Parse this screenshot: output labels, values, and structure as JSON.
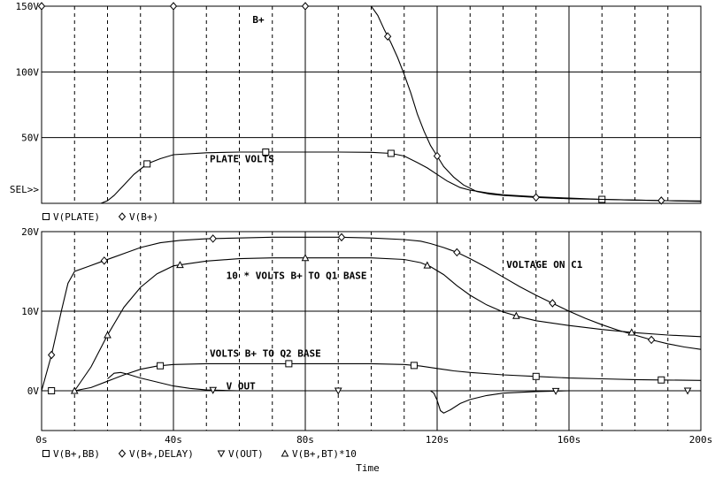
{
  "chart_data": [
    {
      "type": "line",
      "x_unit": "s",
      "xlim": [
        0,
        200
      ],
      "ylim": [
        0,
        150
      ],
      "y_ticks": [
        {
          "v": 0,
          "label": ""
        },
        {
          "v": 50,
          "label": "50V"
        },
        {
          "v": 100,
          "label": "100V"
        },
        {
          "v": 150,
          "label": "150V"
        }
      ],
      "sel_label": "SEL>>",
      "grid": true,
      "annotations": [
        {
          "text": "B+",
          "x": 64,
          "y": 140
        },
        {
          "text": "PLATE VOLTS",
          "x": 51,
          "y": 34
        }
      ],
      "legend": [
        {
          "marker": "square",
          "label": "V(PLATE)"
        },
        {
          "marker": "diamond",
          "label": "V(B+)"
        }
      ],
      "series": [
        {
          "name": "V(PLATE)",
          "marker": "square",
          "points": [
            [
              18,
              0
            ],
            [
              20,
              2
            ],
            [
              22,
              6
            ],
            [
              25,
              14
            ],
            [
              28,
              22
            ],
            [
              32,
              30
            ],
            [
              36,
              34
            ],
            [
              40,
              37
            ],
            [
              50,
              38.5
            ],
            [
              60,
              39
            ],
            [
              70,
              39
            ],
            [
              80,
              39
            ],
            [
              90,
              39
            ],
            [
              100,
              38.8
            ],
            [
              106,
              38
            ],
            [
              110,
              36
            ],
            [
              114,
              31
            ],
            [
              117,
              27
            ],
            [
              120,
              22
            ],
            [
              123,
              17
            ],
            [
              127,
              12
            ],
            [
              130,
              10
            ],
            [
              135,
              8
            ],
            [
              140,
              6.5
            ],
            [
              150,
              5
            ],
            [
              160,
              4
            ],
            [
              170,
              3
            ],
            [
              180,
              2.5
            ],
            [
              190,
              2
            ],
            [
              200,
              1.5
            ]
          ],
          "marker_x": [
            32,
            68,
            106,
            170
          ]
        },
        {
          "name": "V(B+)",
          "marker": "diamond",
          "points": [
            [
              0,
              150
            ],
            [
              20,
              150
            ],
            [
              40,
              150
            ],
            [
              60,
              150
            ],
            [
              80,
              150
            ],
            [
              100,
              150
            ],
            [
              102,
              143
            ],
            [
              104,
              132
            ],
            [
              106,
              122
            ],
            [
              108,
              111
            ],
            [
              110,
              98
            ],
            [
              112,
              84
            ],
            [
              114,
              68
            ],
            [
              116,
              55
            ],
            [
              118,
              44
            ],
            [
              120,
              36
            ],
            [
              122,
              28
            ],
            [
              125,
              20
            ],
            [
              128,
              14
            ],
            [
              132,
              9
            ],
            [
              136,
              7
            ],
            [
              140,
              6
            ],
            [
              150,
              4.5
            ],
            [
              160,
              3.5
            ],
            [
              170,
              3
            ],
            [
              180,
              2.5
            ],
            [
              190,
              2
            ],
            [
              200,
              1.8
            ]
          ],
          "marker_x": [
            0,
            40,
            80,
            105,
            120,
            150,
            188
          ]
        }
      ]
    },
    {
      "type": "line",
      "x_unit": "s",
      "xlim": [
        0,
        200
      ],
      "ylim": [
        -5,
        20
      ],
      "y_ticks": [
        {
          "v": 0,
          "label": "0V"
        },
        {
          "v": 10,
          "label": "10V"
        },
        {
          "v": 20,
          "label": "20V"
        }
      ],
      "x_ticks": [
        {
          "v": 0,
          "label": "0s"
        },
        {
          "v": 40,
          "label": "40s"
        },
        {
          "v": 80,
          "label": "80s"
        },
        {
          "v": 120,
          "label": "120s"
        },
        {
          "v": 160,
          "label": "160s"
        },
        {
          "v": 200,
          "label": "200s"
        }
      ],
      "xlabel": "Time",
      "grid": true,
      "annotations": [
        {
          "text": "VOLTAGE ON C1",
          "x": 141,
          "y": 15.9
        },
        {
          "text": "10 * VOLTS B+ TO Q1 BASE",
          "x": 56,
          "y": 14.5
        },
        {
          "text": "VOLTS B+ TO Q2 BASE",
          "x": 51,
          "y": 4.7
        },
        {
          "text": "V OUT",
          "x": 56,
          "y": 0.6
        }
      ],
      "legend": [
        {
          "marker": "square",
          "label": "V(B+,BB)"
        },
        {
          "marker": "diamond",
          "label": "V(B+,DELAY)"
        },
        {
          "marker": "triangle-down",
          "label": "V(OUT)"
        },
        {
          "marker": "triangle-up",
          "label": "V(B+,BT)*10"
        }
      ],
      "series": [
        {
          "name": "V(B+,BB)",
          "marker": "square",
          "points": [
            [
              0,
              0
            ],
            [
              10,
              0
            ],
            [
              15,
              0.4
            ],
            [
              20,
              1.2
            ],
            [
              25,
              2
            ],
            [
              30,
              2.7
            ],
            [
              35,
              3.1
            ],
            [
              40,
              3.3
            ],
            [
              50,
              3.4
            ],
            [
              60,
              3.4
            ],
            [
              80,
              3.4
            ],
            [
              100,
              3.4
            ],
            [
              110,
              3.3
            ],
            [
              115,
              3.1
            ],
            [
              120,
              2.8
            ],
            [
              125,
              2.5
            ],
            [
              130,
              2.3
            ],
            [
              140,
              2.0
            ],
            [
              150,
              1.8
            ],
            [
              160,
              1.6
            ],
            [
              170,
              1.5
            ],
            [
              180,
              1.4
            ],
            [
              190,
              1.35
            ],
            [
              200,
              1.3
            ]
          ],
          "marker_x": [
            3,
            36,
            75,
            113,
            150,
            188
          ]
        },
        {
          "name": "V(B+,DELAY)",
          "marker": "diamond",
          "points": [
            [
              0,
              0
            ],
            [
              3,
              4.5
            ],
            [
              6,
              10
            ],
            [
              8,
              13.5
            ],
            [
              10,
              15
            ],
            [
              14,
              15.6
            ],
            [
              18,
              16.2
            ],
            [
              22,
              16.8
            ],
            [
              26,
              17.4
            ],
            [
              30,
              18
            ],
            [
              36,
              18.6
            ],
            [
              42,
              18.9
            ],
            [
              50,
              19.1
            ],
            [
              60,
              19.2
            ],
            [
              70,
              19.3
            ],
            [
              80,
              19.3
            ],
            [
              90,
              19.3
            ],
            [
              100,
              19.2
            ],
            [
              110,
              19
            ],
            [
              115,
              18.8
            ],
            [
              118,
              18.5
            ],
            [
              122,
              18
            ],
            [
              126,
              17.4
            ],
            [
              130,
              16.6
            ],
            [
              135,
              15.5
            ],
            [
              140,
              14.3
            ],
            [
              145,
              13.1
            ],
            [
              150,
              12
            ],
            [
              155,
              11
            ],
            [
              160,
              10
            ],
            [
              165,
              9.1
            ],
            [
              170,
              8.3
            ],
            [
              175,
              7.6
            ],
            [
              180,
              7
            ],
            [
              185,
              6.4
            ],
            [
              190,
              5.9
            ],
            [
              195,
              5.5
            ],
            [
              200,
              5.2
            ]
          ],
          "marker_x": [
            3,
            19,
            52,
            91,
            126,
            155,
            185
          ]
        },
        {
          "name": "V(OUT)",
          "marker": "triangle-down",
          "points": [
            [
              20,
              1.5
            ],
            [
              22,
              2.2
            ],
            [
              24,
              2.3
            ],
            [
              26,
              2.1
            ],
            [
              30,
              1.6
            ],
            [
              35,
              1.1
            ],
            [
              40,
              0.6
            ],
            [
              45,
              0.3
            ],
            [
              50,
              0.1
            ],
            [
              55,
              0.05
            ],
            [
              60,
              0
            ],
            [
              80,
              0
            ],
            [
              90,
              0
            ],
            [
              100,
              0
            ],
            [
              110,
              0
            ],
            [
              118,
              0
            ],
            [
              119,
              -0.3
            ],
            [
              120,
              -1.2
            ],
            [
              121,
              -2.5
            ],
            [
              122,
              -2.8
            ],
            [
              124,
              -2.4
            ],
            [
              127,
              -1.6
            ],
            [
              130,
              -1.1
            ],
            [
              135,
              -0.6
            ],
            [
              140,
              -0.3
            ],
            [
              150,
              -0.1
            ],
            [
              160,
              0
            ],
            [
              175,
              0
            ],
            [
              188,
              0
            ]
          ],
          "marker_x": [
            52,
            90,
            156,
            196
          ]
        },
        {
          "name": "V(B+,BT)*10",
          "marker": "triangle-up",
          "points": [
            [
              10,
              0
            ],
            [
              15,
              3
            ],
            [
              20,
              7
            ],
            [
              25,
              10.5
            ],
            [
              30,
              13
            ],
            [
              35,
              14.7
            ],
            [
              40,
              15.7
            ],
            [
              50,
              16.3
            ],
            [
              60,
              16.6
            ],
            [
              70,
              16.7
            ],
            [
              80,
              16.7
            ],
            [
              90,
              16.7
            ],
            [
              100,
              16.7
            ],
            [
              110,
              16.5
            ],
            [
              115,
              16.1
            ],
            [
              118,
              15.6
            ],
            [
              122,
              14.6
            ],
            [
              126,
              13.2
            ],
            [
              130,
              12
            ],
            [
              135,
              10.8
            ],
            [
              140,
              9.9
            ],
            [
              145,
              9.3
            ],
            [
              150,
              8.8
            ],
            [
              160,
              8.2
            ],
            [
              170,
              7.7
            ],
            [
              180,
              7.3
            ],
            [
              190,
              7
            ],
            [
              200,
              6.8
            ]
          ],
          "marker_x": [
            10,
            20,
            42,
            80,
            117,
            144,
            179
          ]
        }
      ]
    }
  ]
}
